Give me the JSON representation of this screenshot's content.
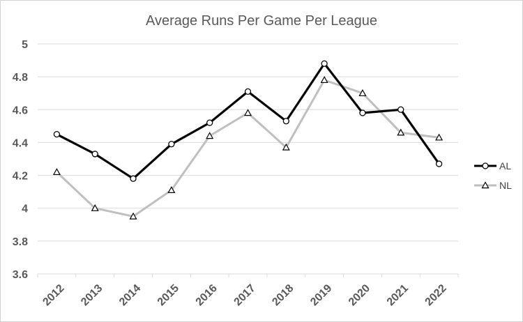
{
  "chart_data": {
    "type": "line",
    "title": "Average Runs Per Game Per League",
    "xlabel": "",
    "ylabel": "",
    "categories": [
      "2012",
      "2013",
      "2014",
      "2015",
      "2016",
      "2017",
      "2018",
      "2019",
      "2020",
      "2021",
      "2022"
    ],
    "ylim": [
      3.6,
      5
    ],
    "yticks": [
      3.6,
      3.8,
      4,
      4.2,
      4.4,
      4.6,
      4.8,
      5
    ],
    "ytick_labels": [
      "3.6",
      "3.8",
      "4",
      "4.2",
      "4.4",
      "4.6",
      "4.8",
      "5"
    ],
    "grid": "horizontal",
    "legend_position": "right",
    "series": [
      {
        "name": "AL",
        "color": "#000000",
        "marker": "circle",
        "values": [
          4.45,
          4.33,
          4.18,
          4.39,
          4.52,
          4.71,
          4.53,
          4.88,
          4.58,
          4.6,
          4.27
        ]
      },
      {
        "name": "NL",
        "color": "#bfbfbf",
        "marker": "triangle",
        "values": [
          4.22,
          4.0,
          3.95,
          4.11,
          4.44,
          4.58,
          4.37,
          4.78,
          4.7,
          4.46,
          4.43
        ]
      }
    ]
  }
}
